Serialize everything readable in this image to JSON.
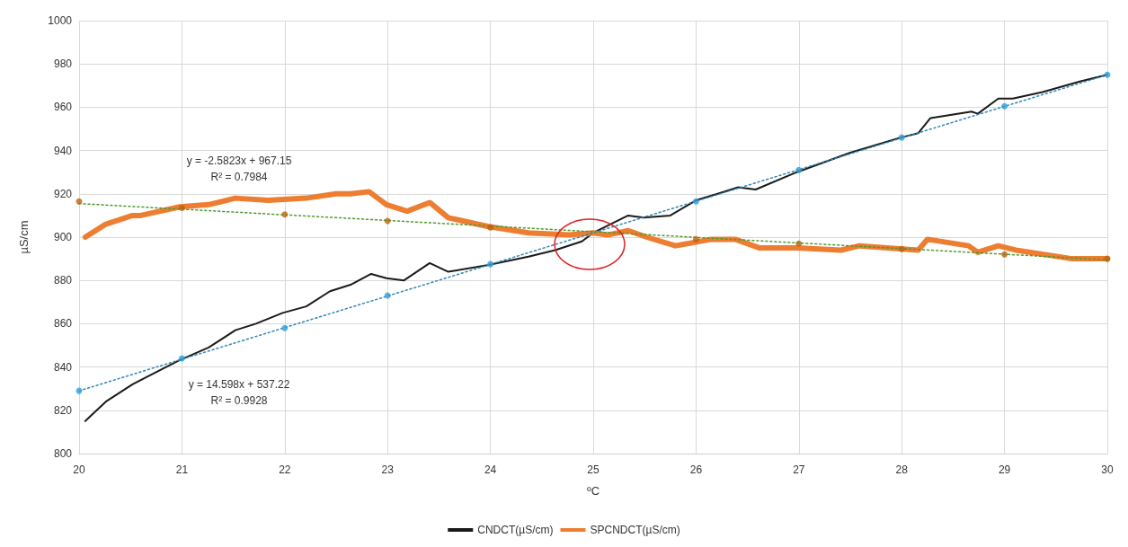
{
  "chart_data": {
    "type": "line",
    "xlabel": "ºC",
    "ylabel": "µS/cm",
    "xlim": [
      20,
      30
    ],
    "xticks": [
      20,
      21,
      22,
      23,
      24,
      25,
      26,
      27,
      28,
      29,
      30
    ],
    "ylim": [
      800,
      1000
    ],
    "yticks": [
      800,
      820,
      840,
      860,
      880,
      900,
      920,
      940,
      960,
      980,
      1000
    ],
    "grid": true,
    "legend": "bottom",
    "marker": "none",
    "line_style": "solid",
    "series": [
      {
        "name": "CNDCT(µS/cm)",
        "color": "#1a1a1a",
        "x": [
          20.06,
          20.26,
          20.52,
          20.6,
          20.97,
          21.26,
          21.52,
          21.72,
          21.98,
          22.21,
          22.44,
          22.64,
          22.84,
          22.99,
          23.16,
          23.41,
          23.59,
          23.97,
          24.37,
          24.63,
          24.89,
          25.0,
          25.34,
          25.49,
          25.75,
          26.0,
          26.21,
          26.41,
          26.58,
          26.98,
          27.5,
          27.99,
          28.16,
          28.28,
          28.68,
          28.74,
          28.94,
          29.08,
          29.37,
          29.74,
          30.0
        ],
        "values": [
          815,
          824,
          832,
          834,
          843,
          849,
          857,
          860,
          865,
          868,
          875,
          878,
          883,
          881,
          880,
          888,
          884,
          887,
          891,
          894,
          898,
          902,
          910,
          909,
          910,
          917,
          920,
          923,
          922,
          930,
          939,
          946,
          948,
          955,
          958,
          957,
          964,
          964,
          967,
          972,
          975
        ]
      },
      {
        "name": "SPCNDCT(µS/cm)",
        "color": "#ed7d31",
        "x": [
          20.06,
          20.26,
          20.52,
          20.6,
          20.98,
          21.26,
          21.52,
          21.84,
          22.21,
          22.5,
          22.64,
          22.82,
          22.99,
          23.19,
          23.41,
          23.59,
          23.97,
          24.37,
          24.77,
          25.0,
          25.14,
          25.34,
          25.52,
          25.8,
          26.15,
          26.38,
          26.62,
          26.98,
          27.41,
          27.59,
          28.16,
          28.25,
          28.65,
          28.74,
          28.94,
          29.11,
          29.66,
          30.0
        ],
        "values": [
          900,
          906,
          910,
          910,
          914,
          915,
          918,
          917,
          918,
          920,
          920,
          921,
          915,
          912,
          916,
          909,
          905,
          902,
          901,
          902,
          901,
          903,
          900,
          896,
          899,
          899,
          895,
          895,
          894,
          896,
          894,
          899,
          896,
          893,
          896,
          894,
          890,
          890
        ]
      },
      {
        "color": "#2e9fd8",
        "type": "scatter",
        "marker": "circle",
        "x": [
          20,
          21,
          22,
          23,
          24,
          25,
          26,
          27,
          28,
          29,
          30
        ],
        "values": [
          829,
          844,
          858,
          873,
          887.5,
          null,
          916.5,
          931,
          946,
          960.5,
          975
        ]
      },
      {
        "color": "#b8650f",
        "type": "scatter",
        "marker": "circle",
        "x": [
          20,
          21,
          22,
          23,
          24,
          25,
          26,
          27,
          28,
          29,
          30
        ],
        "values": [
          916.5,
          913.5,
          910.5,
          907.5,
          904.5,
          null,
          899,
          897,
          894.5,
          892,
          890
        ]
      },
      {
        "color": "#2e86b8",
        "type": "line",
        "line_style": "dotted",
        "x": [
          20,
          30
        ],
        "values": [
          829,
          975
        ]
      },
      {
        "color": "#4e9a2e",
        "type": "line",
        "line_style": "dotted",
        "x": [
          20,
          30
        ],
        "values": [
          915.5,
          889.5
        ]
      }
    ],
    "annotations": [
      "y = -2.5823x + 967.15\nR² = 0.7984",
      "y = 14.598x + 537.22\nR² = 0.9928"
    ]
  }
}
